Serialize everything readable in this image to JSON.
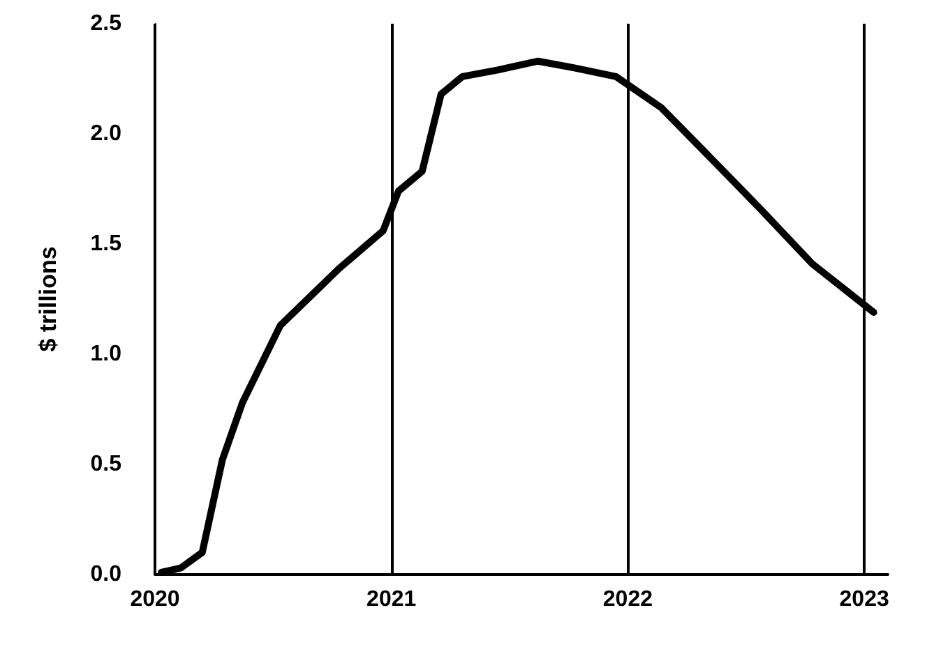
{
  "chart_data": {
    "type": "line",
    "ylabel": "$ trillions",
    "x": [
      2020.027,
      2020.11,
      2020.2,
      2020.285,
      2020.37,
      2020.53,
      2020.655,
      2020.78,
      2020.965,
      2021.03,
      2021.13,
      2021.21,
      2021.3,
      2021.45,
      2021.62,
      2021.77,
      2021.95,
      2022.14,
      2022.36,
      2022.56,
      2022.78,
      2023.04
    ],
    "series": [
      {
        "color": "#000000",
        "values": [
          0.01,
          0.03,
          0.1,
          0.52,
          0.78,
          1.13,
          1.26,
          1.39,
          1.56,
          1.74,
          1.83,
          2.18,
          2.26,
          2.29,
          2.33,
          2.3,
          2.26,
          2.12,
          1.88,
          1.66,
          1.41,
          1.19
        ]
      }
    ],
    "xlim": [
      2020,
      2023.1
    ],
    "xticks": [
      2020,
      2021,
      2022,
      2023
    ],
    "ylim": [
      0,
      2.5
    ],
    "yticks": [
      {
        "value": 0,
        "label": "0.0"
      },
      0.5,
      {
        "value": 1,
        "label": "1.0"
      },
      1.5,
      {
        "value": 2,
        "label": "2.0"
      },
      2.5
    ],
    "grid": "x",
    "marker": "none",
    "line_style": "solid"
  }
}
